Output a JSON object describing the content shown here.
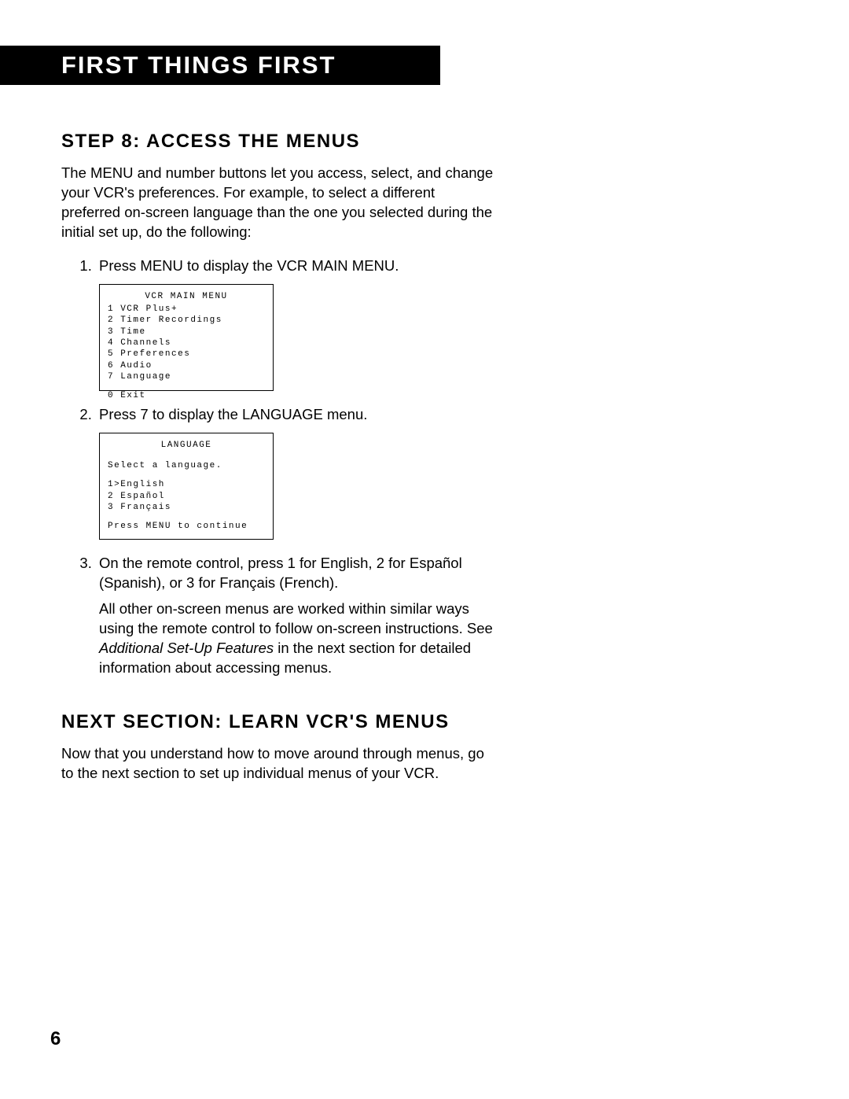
{
  "header": {
    "title": "FIRST THINGS FIRST"
  },
  "step8": {
    "heading": "STEP 8: ACCESS THE MENUS",
    "intro": "The MENU and number buttons let you access, select, and change your VCR's preferences. For example, to select a different preferred on-screen language than the one you selected during the initial set up, do the following:",
    "item1": "Press MENU to display the VCR MAIN MENU.",
    "item2": "Press 7 to display the LANGUAGE menu.",
    "item3": "On the remote control, press 1 for English, 2 for Español (Spanish), or 3 for Français (French).",
    "note_pre": "All other on-screen menus are worked within similar ways using the remote control to follow on-screen instructions. See ",
    "note_italic": "Additional Set-Up Features",
    "note_post": " in the next section for detailed information about accessing menus."
  },
  "menu1": {
    "title": "VCR MAIN MENU",
    "l1": "1 VCR Plus+",
    "l2": "2 Timer Recordings",
    "l3": "3 Time",
    "l4": "4 Channels",
    "l5": "5 Preferences",
    "l6": "6 Audio",
    "l7": "7 Language",
    "exit": "0 Exit"
  },
  "menu2": {
    "title": "LANGUAGE",
    "prompt": "Select a language.",
    "l1": "1>English",
    "l2": "2 Español",
    "l3": "3 Français",
    "footer": "Press MENU to continue"
  },
  "next": {
    "heading": "NEXT SECTION: LEARN VCR'S MENUS",
    "body": "Now that you understand how to move around through menus, go to the next section to set up individual menus of your VCR."
  },
  "page_number": "6"
}
